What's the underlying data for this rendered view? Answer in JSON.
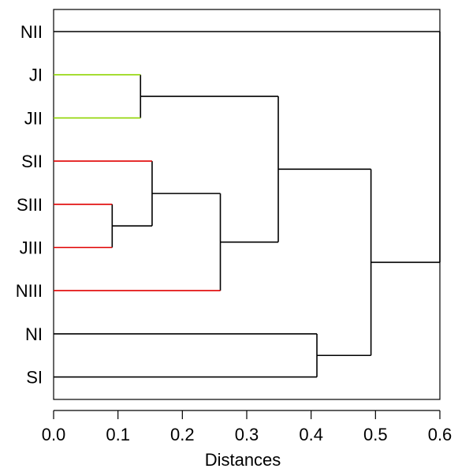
{
  "chart_data": {
    "type": "dendrogram",
    "title": "",
    "xlabel": "Distances",
    "ylabel": "",
    "xlim": [
      0.0,
      0.6
    ],
    "xticks": [
      "0.0",
      "0.1",
      "0.2",
      "0.3",
      "0.4",
      "0.5",
      "0.6"
    ],
    "leaves": [
      "NII",
      "JI",
      "JII",
      "SII",
      "SIII",
      "JIII",
      "NIII",
      "NI",
      "SI"
    ],
    "leaf_colors": {
      "NII": "#000000",
      "JI": "#8fd400",
      "JII": "#8fd400",
      "SII": "#e00000",
      "SIII": "#e00000",
      "JIII": "#e00000",
      "NIII": "#e00000",
      "NI": "#000000",
      "SI": "#000000"
    },
    "link_color": "#000000",
    "frame": true,
    "merges": [
      {
        "left": "SIII",
        "right": "JIII",
        "distance": 0.091
      },
      {
        "left": "JI",
        "right": "JII",
        "distance": 0.135
      },
      {
        "left": "SII",
        "right": "SIII+JIII",
        "distance": 0.153
      },
      {
        "left": "SII+SIII+JIII",
        "right": "NIII",
        "distance": 0.259
      },
      {
        "left": "JI+JII",
        "right": "SII+SIII+JIII+NIII",
        "distance": 0.349
      },
      {
        "left": "NI",
        "right": "SI",
        "distance": 0.409
      },
      {
        "left": "JI+JII+SII+SIII+JIII+NIII",
        "right": "NI+SI",
        "distance": 0.493
      },
      {
        "left": "NII",
        "right": "JI+JII+SII+SIII+JIII+NIII+NI+SI",
        "distance": 0.6
      }
    ]
  }
}
